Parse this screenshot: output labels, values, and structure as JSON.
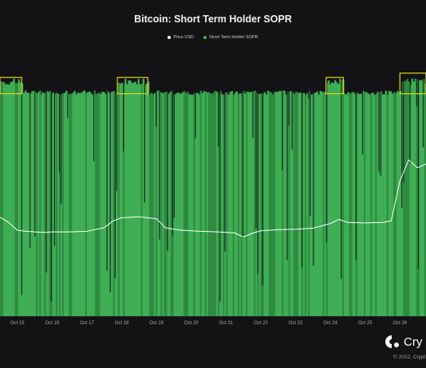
{
  "title": "Bitcoin: Short Term Holder SOPR",
  "legend": [
    {
      "label": "Price USD",
      "color": "#ffffff"
    },
    {
      "label": "Short Term Holder SOPR",
      "color": "#3fae55"
    }
  ],
  "brand": {
    "name": "Cry",
    "copyright": "© 2022, Crypt"
  },
  "colors": {
    "background": "#131316",
    "bar": "#3fae55",
    "price": "#ffffff",
    "highlight": "#e6d21c",
    "grid": "#2a2a2e"
  },
  "chart_data": {
    "type": "bar",
    "title": "Bitcoin: Short Term Holder SOPR",
    "x_ticks": [
      "Oct 15",
      "Oct 16",
      "Oct 17",
      "Oct 18",
      "Oct 19",
      "Oct 20",
      "Oct 21",
      "Oct 22",
      "Oct 23",
      "Oct 24",
      "Oct 25",
      "Oct 26"
    ],
    "x_range": [
      "2022-10-14 12:00",
      "2022-10-26 18:00"
    ],
    "sopr_baseline": 1.0,
    "sopr_ylim": [
      0.9,
      1.02
    ],
    "series": [
      {
        "name": "Short Term Holder SOPR",
        "kind": "bars",
        "approximate": true,
        "typical_value": 1.003,
        "spike_value": 1.008,
        "dip_min_value": 0.905
      },
      {
        "name": "Price USD",
        "kind": "line",
        "points": [
          {
            "t": "2022-10-14 12:00",
            "v": 19400
          },
          {
            "t": "2022-10-14 18:00",
            "v": 19300
          },
          {
            "t": "2022-10-15 00:00",
            "v": 19150
          },
          {
            "t": "2022-10-15 06:00",
            "v": 19130
          },
          {
            "t": "2022-10-15 12:00",
            "v": 19120
          },
          {
            "t": "2022-10-15 18:00",
            "v": 19110
          },
          {
            "t": "2022-10-16 00:00",
            "v": 19120
          },
          {
            "t": "2022-10-16 12:00",
            "v": 19120
          },
          {
            "t": "2022-10-17 00:00",
            "v": 19130
          },
          {
            "t": "2022-10-17 12:00",
            "v": 19200
          },
          {
            "t": "2022-10-17 18:00",
            "v": 19330
          },
          {
            "t": "2022-10-18 00:00",
            "v": 19390
          },
          {
            "t": "2022-10-18 12:00",
            "v": 19410
          },
          {
            "t": "2022-10-19 00:00",
            "v": 19370
          },
          {
            "t": "2022-10-19 06:00",
            "v": 19200
          },
          {
            "t": "2022-10-19 12:00",
            "v": 19170
          },
          {
            "t": "2022-10-19 18:00",
            "v": 19150
          },
          {
            "t": "2022-10-20 06:00",
            "v": 19130
          },
          {
            "t": "2022-10-20 18:00",
            "v": 19120
          },
          {
            "t": "2022-10-21 06:00",
            "v": 19100
          },
          {
            "t": "2022-10-21 12:00",
            "v": 19020
          },
          {
            "t": "2022-10-21 18:00",
            "v": 19090
          },
          {
            "t": "2022-10-22 00:00",
            "v": 19140
          },
          {
            "t": "2022-10-22 12:00",
            "v": 19160
          },
          {
            "t": "2022-10-23 00:00",
            "v": 19170
          },
          {
            "t": "2022-10-23 12:00",
            "v": 19190
          },
          {
            "t": "2022-10-24 00:00",
            "v": 19280
          },
          {
            "t": "2022-10-24 06:00",
            "v": 19360
          },
          {
            "t": "2022-10-24 12:00",
            "v": 19300
          },
          {
            "t": "2022-10-25 00:00",
            "v": 19290
          },
          {
            "t": "2022-10-25 12:00",
            "v": 19300
          },
          {
            "t": "2022-10-25 18:00",
            "v": 19330
          },
          {
            "t": "2022-10-26 00:00",
            "v": 20100
          },
          {
            "t": "2022-10-26 06:00",
            "v": 20500
          },
          {
            "t": "2022-10-26 12:00",
            "v": 20350
          },
          {
            "t": "2022-10-26 18:00",
            "v": 20420
          }
        ]
      }
    ],
    "highlights": [
      {
        "start": "2022-10-14 12:00",
        "end": "2022-10-15 03:00"
      },
      {
        "start": "2022-10-17 21:00",
        "end": "2022-10-18 18:00"
      },
      {
        "start": "2022-10-23 21:00",
        "end": "2022-10-24 09:00"
      },
      {
        "start": "2022-10-26 00:00",
        "end": "2022-10-26 18:00"
      }
    ],
    "grid": true,
    "legend_position": "top-center"
  }
}
